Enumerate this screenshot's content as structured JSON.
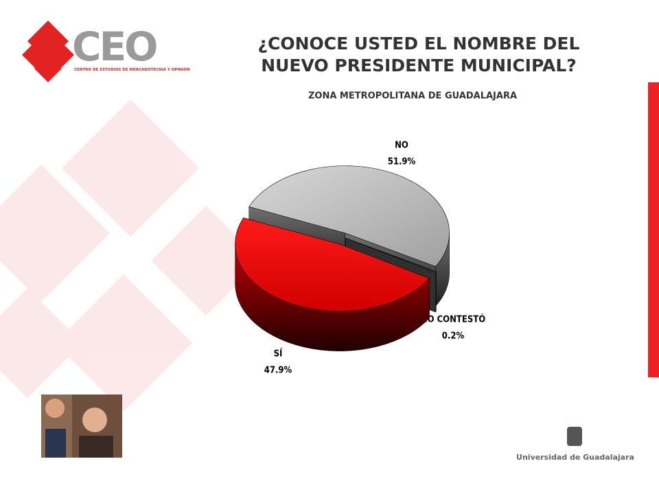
{
  "logo": {
    "name": "CEO",
    "subtitle": "CENTRO DE ESTUDIOS DE MERCADOTECNIA Y OPINIÓN"
  },
  "footer": {
    "university": "Universidad de Guadalajara"
  },
  "chart_data": {
    "type": "pie3d",
    "title": "¿CONOCE USTED EL NOMBRE DEL NUEVO PRESIDENTE MUNICIPAL?",
    "subtitle": "ZONA METROPOLITANA DE GUADALAJARA",
    "categories": [
      "NO",
      "NO CONTESTÓ",
      "SÍ"
    ],
    "values": [
      51.9,
      0.2,
      47.9
    ],
    "value_labels": [
      "51.9%",
      "0.2%",
      "47.9%"
    ],
    "colors": [
      "#c8c8c8",
      "#555555",
      "#ff0000"
    ]
  }
}
